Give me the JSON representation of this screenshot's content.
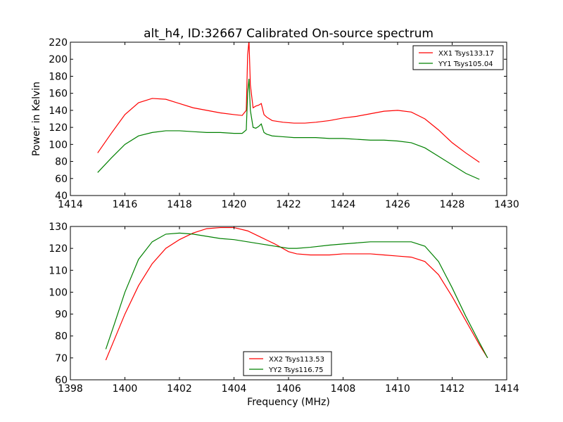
{
  "chart_data": [
    {
      "type": "line",
      "title": "alt_h4, ID:32667 Calibrated On-source spectrum",
      "xlabel": "",
      "ylabel": "Power in Kelvin",
      "xlim": [
        1414,
        1430
      ],
      "ylim": [
        40,
        220
      ],
      "xticks": [
        1414,
        1416,
        1418,
        1420,
        1422,
        1424,
        1426,
        1428,
        1430
      ],
      "yticks": [
        40,
        60,
        80,
        100,
        120,
        140,
        160,
        180,
        200,
        220
      ],
      "legend_position": "top-right",
      "series": [
        {
          "name": "XX1 Tsys133.17",
          "color": "#ff0000",
          "x": [
            1415,
            1415.5,
            1416,
            1416.5,
            1417,
            1417.5,
            1418,
            1418.5,
            1419,
            1419.5,
            1420,
            1420.3,
            1420.45,
            1420.5,
            1420.55,
            1420.6,
            1420.7,
            1420.8,
            1420.9,
            1421.0,
            1421.1,
            1421.2,
            1421.4,
            1421.8,
            1422.2,
            1422.6,
            1423,
            1423.5,
            1424,
            1424.5,
            1425,
            1425.5,
            1426,
            1426.5,
            1427,
            1427.5,
            1428,
            1428.5,
            1429
          ],
          "y": [
            90,
            113,
            135,
            149,
            154,
            153,
            148,
            143,
            140,
            137,
            135,
            134,
            140,
            205,
            222,
            170,
            143,
            145,
            146,
            148,
            135,
            132,
            128,
            126,
            125,
            125,
            126,
            128,
            131,
            133,
            136,
            139,
            140,
            138,
            130,
            117,
            102,
            90,
            79
          ]
        },
        {
          "name": "YY1 Tsys105.04",
          "color": "#008000",
          "x": [
            1415,
            1415.5,
            1416,
            1416.5,
            1417,
            1417.5,
            1418,
            1418.5,
            1419,
            1419.5,
            1420,
            1420.3,
            1420.45,
            1420.5,
            1420.55,
            1420.6,
            1420.7,
            1420.8,
            1420.9,
            1421.0,
            1421.1,
            1421.2,
            1421.4,
            1421.8,
            1422.2,
            1422.6,
            1423,
            1423.5,
            1424,
            1424.5,
            1425,
            1425.5,
            1426,
            1426.5,
            1427,
            1427.5,
            1428,
            1428.5,
            1429
          ],
          "y": [
            67,
            84,
            100,
            110,
            114,
            116,
            116,
            115,
            114,
            114,
            113,
            113,
            117,
            160,
            177,
            140,
            120,
            119,
            121,
            124,
            114,
            112,
            110,
            109,
            108,
            108,
            108,
            107,
            107,
            106,
            105,
            105,
            104,
            102,
            96,
            86,
            76,
            66,
            59
          ]
        }
      ]
    },
    {
      "type": "line",
      "title": "",
      "xlabel": "Frequency (MHz)",
      "ylabel": "",
      "xlim": [
        1398,
        1414
      ],
      "ylim": [
        60,
        130
      ],
      "xticks": [
        1398,
        1400,
        1402,
        1404,
        1406,
        1408,
        1410,
        1412,
        1414
      ],
      "yticks": [
        60,
        70,
        80,
        90,
        100,
        110,
        120,
        130
      ],
      "legend_position": "bottom-center",
      "series": [
        {
          "name": "XX2 Tsys113.53",
          "color": "#ff0000",
          "x": [
            1399.3,
            1399.6,
            1400,
            1400.5,
            1401,
            1401.5,
            1402,
            1402.5,
            1403,
            1403.5,
            1404,
            1404.5,
            1405,
            1405.5,
            1406,
            1406.3,
            1406.8,
            1407.5,
            1408,
            1408.5,
            1409,
            1409.5,
            1410,
            1410.5,
            1411,
            1411.5,
            1412,
            1412.5,
            1413,
            1413.3
          ],
          "y": [
            69,
            78,
            90,
            103,
            113,
            120,
            124,
            127,
            129,
            129.5,
            129.5,
            128,
            125,
            122,
            118.5,
            117.5,
            117,
            117,
            117.5,
            117.5,
            117.5,
            117,
            116.5,
            116,
            114,
            108,
            98,
            87,
            76,
            70
          ]
        },
        {
          "name": "YY2 Tsys116.75",
          "color": "#008000",
          "x": [
            1399.3,
            1399.6,
            1400,
            1400.5,
            1401,
            1401.5,
            1402,
            1402.5,
            1403,
            1403.5,
            1404,
            1404.5,
            1405,
            1405.5,
            1406,
            1406.3,
            1406.8,
            1407.5,
            1408,
            1408.5,
            1409,
            1409.5,
            1410,
            1410.5,
            1411,
            1411.5,
            1412,
            1412.5,
            1413,
            1413.3
          ],
          "y": [
            74,
            85,
            100,
            115,
            123,
            126.5,
            127,
            126.5,
            125.5,
            124.5,
            124,
            123,
            122,
            121,
            120,
            120,
            120.5,
            121.5,
            122,
            122.5,
            123,
            123,
            123,
            123,
            121,
            114,
            102,
            89,
            77,
            70
          ]
        }
      ]
    }
  ]
}
